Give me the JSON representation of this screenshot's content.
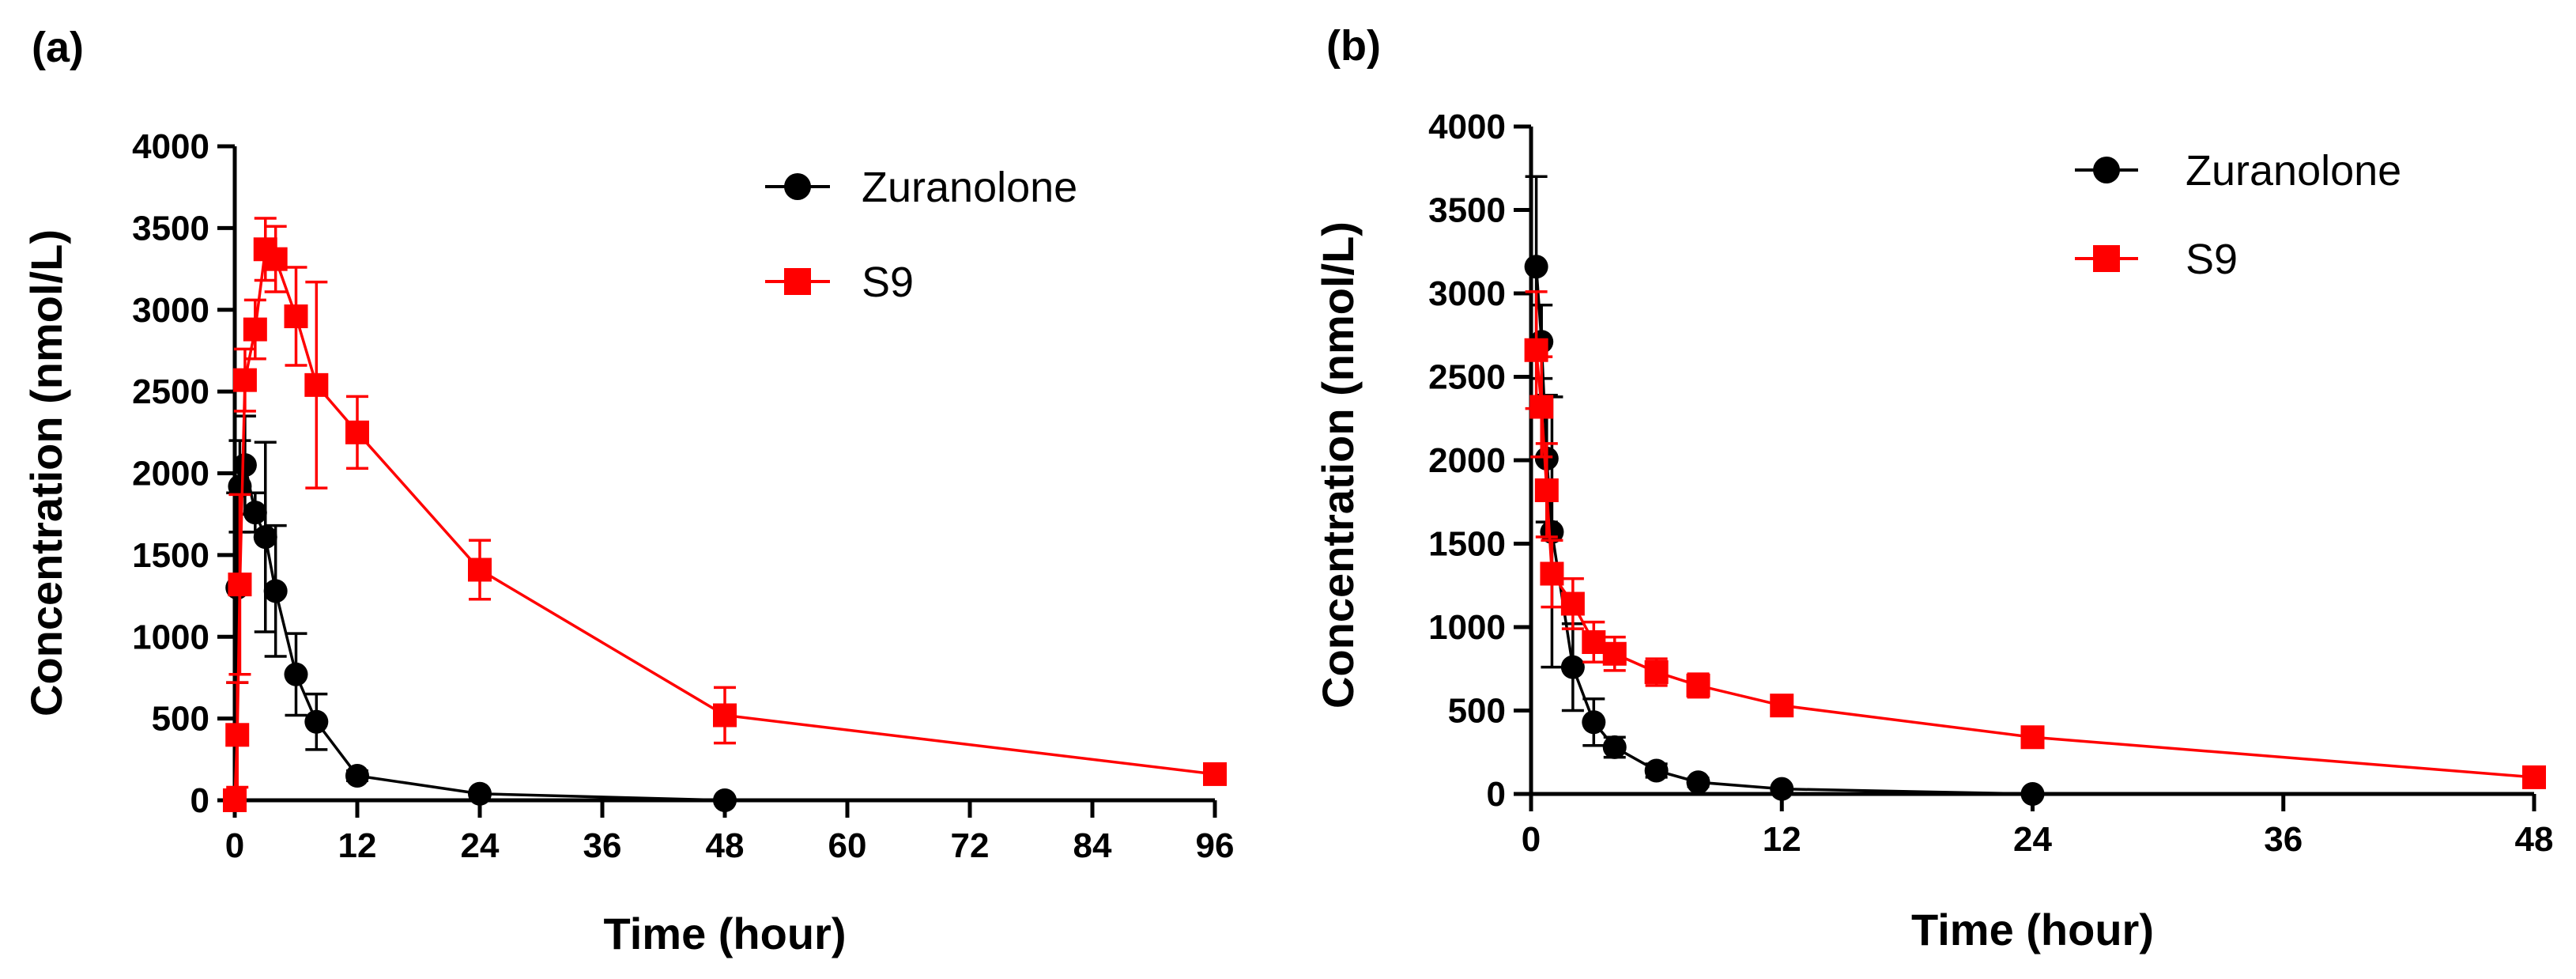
{
  "figure": {
    "panels": [
      "(a)",
      "(b)"
    ]
  },
  "chart_data": [
    {
      "type": "line",
      "panel": "(a)",
      "xlabel": "Time (hour)",
      "ylabel": "Concentration (nmol/L)",
      "xlim": [
        0,
        96
      ],
      "ylim": [
        0,
        4000
      ],
      "xticks": [
        0,
        12,
        24,
        36,
        48,
        60,
        72,
        84,
        96
      ],
      "yticks": [
        0,
        500,
        1000,
        1500,
        2000,
        2500,
        3000,
        3500,
        4000
      ],
      "legend_position": "top-right",
      "series": [
        {
          "name": "Zuranolone",
          "color": "#000000",
          "marker": "circle",
          "x": [
            0,
            0.25,
            0.5,
            1,
            2,
            3,
            4,
            6,
            8,
            12,
            24,
            48
          ],
          "y": [
            0,
            1300,
            1920,
            2050,
            1760,
            1610,
            1280,
            770,
            480,
            150,
            40,
            0
          ],
          "error": [
            0,
            580,
            280,
            300,
            120,
            580,
            400,
            250,
            170,
            30,
            20,
            0
          ]
        },
        {
          "name": "S9",
          "color": "#ff0000",
          "marker": "square",
          "x": [
            0,
            0.25,
            0.5,
            1,
            2,
            3,
            4,
            6,
            8,
            12,
            24,
            48,
            96
          ],
          "y": [
            0,
            400,
            1320,
            2570,
            2880,
            3370,
            3310,
            2960,
            2540,
            2250,
            1410,
            520,
            160
          ],
          "error": [
            0,
            320,
            550,
            190,
            180,
            190,
            200,
            300,
            630,
            220,
            180,
            170,
            30
          ]
        }
      ]
    },
    {
      "type": "line",
      "panel": "(b)",
      "xlabel": "Time (hour)",
      "ylabel": "Concentration (nmol/L)",
      "xlim": [
        0,
        48
      ],
      "ylim": [
        0,
        4000
      ],
      "xticks": [
        0,
        12,
        24,
        36,
        48
      ],
      "yticks": [
        0,
        500,
        1000,
        1500,
        2000,
        2500,
        3000,
        3500,
        4000
      ],
      "legend_position": "top-right",
      "series": [
        {
          "name": "Zuranolone",
          "color": "#000000",
          "marker": "circle",
          "x": [
            0.25,
            0.5,
            0.75,
            1,
            2,
            3,
            4,
            6,
            8,
            12,
            24
          ],
          "y": [
            3160,
            2710,
            2010,
            1570,
            760,
            430,
            280,
            140,
            70,
            30,
            0
          ],
          "error": [
            540,
            220,
            380,
            810,
            260,
            140,
            60,
            40,
            25,
            15,
            0
          ]
        },
        {
          "name": "S9",
          "color": "#ff0000",
          "marker": "square",
          "x": [
            0.25,
            0.5,
            0.75,
            1,
            2,
            3,
            4,
            6,
            8,
            12,
            24,
            48
          ],
          "y": [
            2660,
            2320,
            1820,
            1320,
            1140,
            910,
            840,
            730,
            650,
            530,
            340,
            100
          ],
          "error": [
            350,
            300,
            280,
            200,
            150,
            120,
            100,
            80,
            70,
            60,
            40,
            30
          ]
        }
      ]
    }
  ]
}
